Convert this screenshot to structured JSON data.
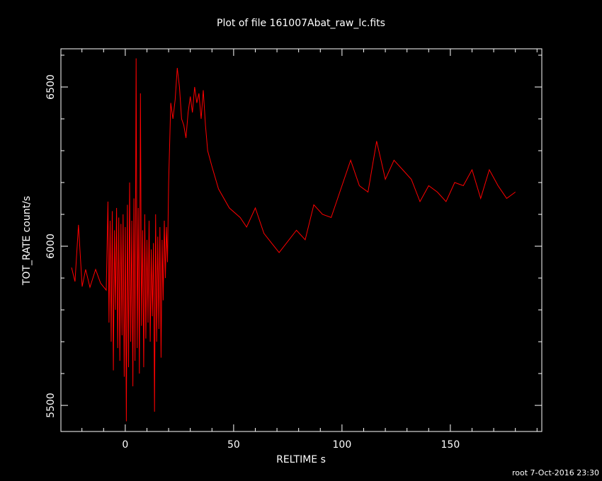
{
  "chart_data": {
    "type": "line",
    "title": "Plot of file 161007Abat_raw_lc.fits",
    "x_label": "RELTIME  s",
    "y_label": "TOT_RATE  count/s",
    "footer": "root  7-Oct-2016 23:30",
    "color": "#ff0000",
    "xlim": [
      -29.7,
      192.2
    ],
    "ylim": [
      5418,
      6620
    ],
    "xticks": [
      0,
      50,
      100,
      150
    ],
    "yticks": [
      5500,
      6000,
      6500
    ],
    "xminor_ticks": [
      -20,
      -10,
      10,
      20,
      30,
      40,
      60,
      70,
      80,
      90,
      110,
      120,
      130,
      140,
      160,
      170,
      180,
      190
    ],
    "yminor_ticks": [
      5600,
      5700,
      5800,
      5900,
      6100,
      6200,
      6300,
      6400,
      6600
    ],
    "x": [
      -24.8,
      -23.2,
      -21.6,
      -19.9,
      -18.3,
      -16.3,
      -13.7,
      -11.4,
      -8.8,
      -8,
      -7.5,
      -7,
      -6.5,
      -6,
      -5.5,
      -5,
      -4.5,
      -4,
      -3.5,
      -3,
      -2.5,
      -2,
      -1.5,
      -1,
      -0.5,
      0,
      0.5,
      1,
      1.5,
      2,
      2.5,
      3,
      3.5,
      4,
      4.5,
      5,
      5.5,
      6,
      6.5,
      7,
      7.5,
      8,
      8.5,
      9,
      9.5,
      10,
      10.5,
      11,
      11.5,
      12,
      12.5,
      13,
      13.5,
      14,
      14.5,
      15,
      15.5,
      16,
      16.5,
      17,
      17.5,
      18,
      18.5,
      19,
      19.5,
      20,
      21,
      22,
      23,
      24,
      25,
      26,
      27,
      28,
      29,
      30,
      31,
      32,
      33,
      34,
      35,
      36,
      37,
      38,
      40,
      43,
      48,
      53,
      56,
      60,
      64,
      71,
      79,
      83,
      87,
      91,
      95,
      99,
      104,
      108,
      112,
      116,
      120,
      124,
      128,
      132,
      136,
      140,
      144,
      148,
      152,
      156,
      160,
      164,
      168,
      172,
      176,
      180
    ],
    "values": [
      5933,
      5889,
      6067,
      5873,
      5927,
      5871,
      5927,
      5884,
      5862,
      6140,
      5760,
      6080,
      5700,
      6110,
      5610,
      6050,
      5800,
      6120,
      5680,
      6090,
      5640,
      6070,
      5720,
      6100,
      5590,
      6060,
      5450,
      6130,
      5620,
      6200,
      5700,
      6080,
      5560,
      6150,
      5640,
      6590,
      5680,
      6120,
      5600,
      6480,
      5750,
      6050,
      5620,
      6100,
      5710,
      6020,
      5760,
      6080,
      5700,
      5990,
      5780,
      6010,
      5480,
      6100,
      5700,
      6030,
      5740,
      6060,
      5650,
      6020,
      5830,
      6080,
      5900,
      6060,
      5950,
      6200,
      6450,
      6400,
      6460,
      6560,
      6500,
      6400,
      6380,
      6340,
      6420,
      6470,
      6420,
      6500,
      6450,
      6480,
      6400,
      6490,
      6380,
      6300,
      6250,
      6180,
      6120,
      6090,
      6060,
      6120,
      6040,
      5980,
      6050,
      6020,
      6130,
      6100,
      6090,
      6170,
      6270,
      6190,
      6170,
      6330,
      6210,
      6270,
      6240,
      6210,
      6140,
      6190,
      6170,
      6140,
      6200,
      6190,
      6240,
      6150,
      6240,
      6190,
      6150,
      6170
    ]
  }
}
